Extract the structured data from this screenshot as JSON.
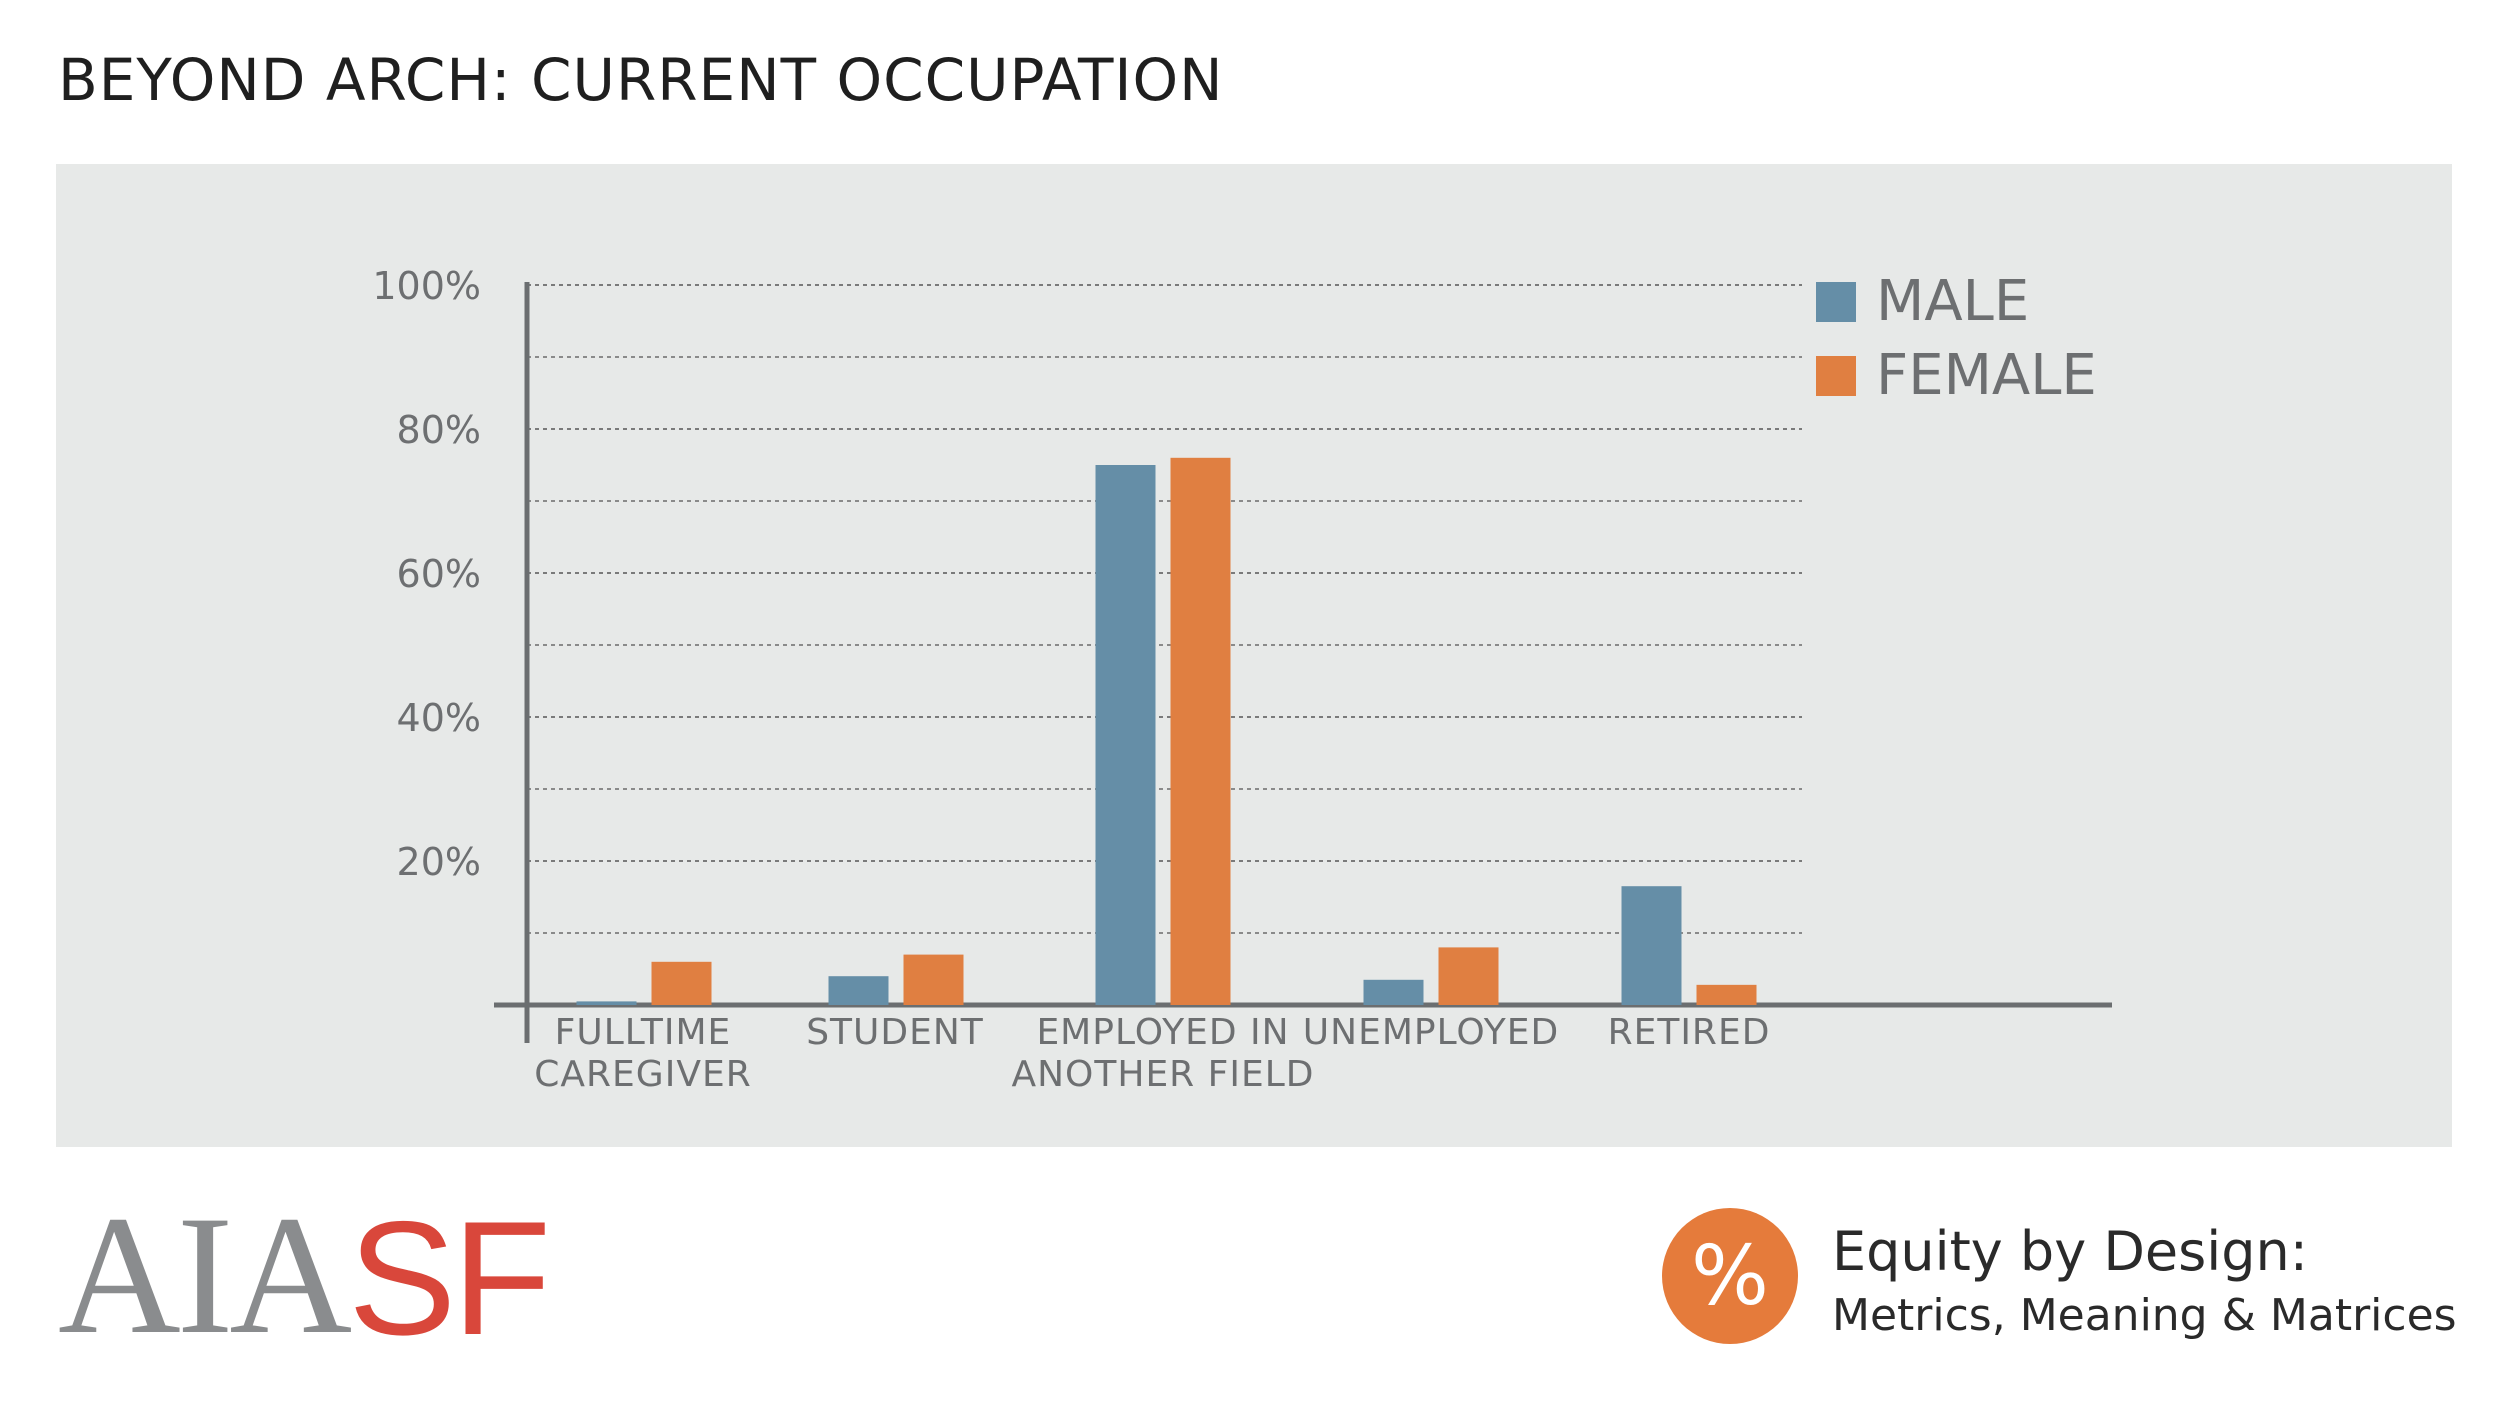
{
  "page": {
    "title": "BEYOND ARCH: CURRENT OCCUPATION"
  },
  "chart_data": {
    "type": "bar",
    "categories": [
      [
        "FULLTIME",
        "CAREGIVER"
      ],
      [
        "STUDENT"
      ],
      [
        "EMPLOYED IN",
        "ANOTHER FIELD"
      ],
      [
        "UNEMPLOYED"
      ],
      [
        "RETIRED"
      ]
    ],
    "series": [
      {
        "name": "MALE",
        "color": "#658ea7",
        "values": [
          0.5,
          4,
          75,
          3.5,
          16.5
        ]
      },
      {
        "name": "FEMALE",
        "color": "#e07f41",
        "values": [
          6,
          7,
          76,
          8,
          2.8
        ]
      }
    ],
    "ylim": [
      0,
      100
    ],
    "yticks": [
      20,
      40,
      60,
      80,
      100
    ],
    "ytick_labels": [
      "20%",
      "40%",
      "60%",
      "80%",
      "100%"
    ],
    "minor_gridlines": [
      10,
      30,
      50,
      70,
      90
    ],
    "grid": true,
    "legend": "top-right",
    "xlabel": "",
    "ylabel": ""
  },
  "footer": {
    "logo_part1": "AIA",
    "logo_part2": "SF",
    "badge_symbol": "%",
    "badge_icon": "percent-icon",
    "tagline_title": "Equity by Design:",
    "tagline_subtitle": "Metrics, Meaning & Matrices"
  }
}
